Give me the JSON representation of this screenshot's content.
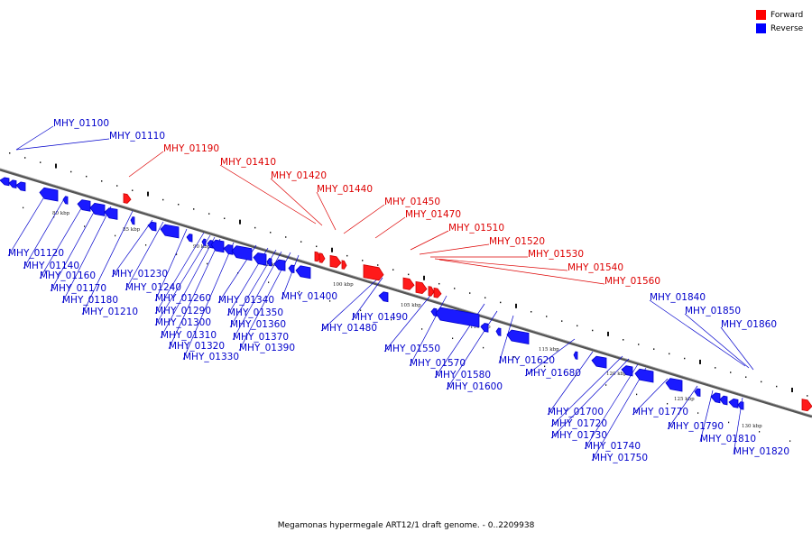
{
  "legend": {
    "forward_label": "Forward",
    "reverse_label": "Reverse",
    "forward_color": "#ff0000",
    "reverse_color": "#0000ff"
  },
  "caption": "Megamonas hypermegale ART12/1 draft genome. - 0..2209938",
  "ticks": [
    "80 kbp",
    "85 kbp",
    "90 kbp",
    "95 kbp",
    "100 kbp",
    "105 kbp",
    "110 kbp",
    "115 kbp",
    "120 kbp",
    "125 kbp",
    "130 kbp"
  ],
  "forward_labels": [
    "MHY_01190",
    "MHY_01410",
    "MHY_01420",
    "MHY_01440",
    "MHY_01450",
    "MHY_01470",
    "MHY_01510",
    "MHY_01520",
    "MHY_01530",
    "MHY_01540",
    "MHY_01560"
  ],
  "reverse_labels": [
    "MHY_01100",
    "MHY_01110",
    "MHY_01120",
    "MHY_01140",
    "MHY_01160",
    "MHY_01170",
    "MHY_01180",
    "MHY_01210",
    "MHY_01230",
    "MHY_01240",
    "MHY_01260",
    "MHY_01290",
    "MHY_01300",
    "MHY_01310",
    "MHY_01320",
    "MHY_01330",
    "MHY_01340",
    "MHY_01350",
    "MHY_01360",
    "MHY_01370",
    "MHY_01390",
    "MHY_01400",
    "MHY_01480",
    "MHY_01490",
    "MHY_01550",
    "MHY_01570",
    "MHY_01580",
    "MHY_01600",
    "MHY_01620",
    "MHY_01680",
    "MHY_01700",
    "MHY_01720",
    "MHY_01730",
    "MHY_01740",
    "MHY_01750",
    "MHY_01770",
    "MHY_01790",
    "MHY_01810",
    "MHY_01820",
    "MHY_01840",
    "MHY_01850",
    "MHY_01860"
  ]
}
